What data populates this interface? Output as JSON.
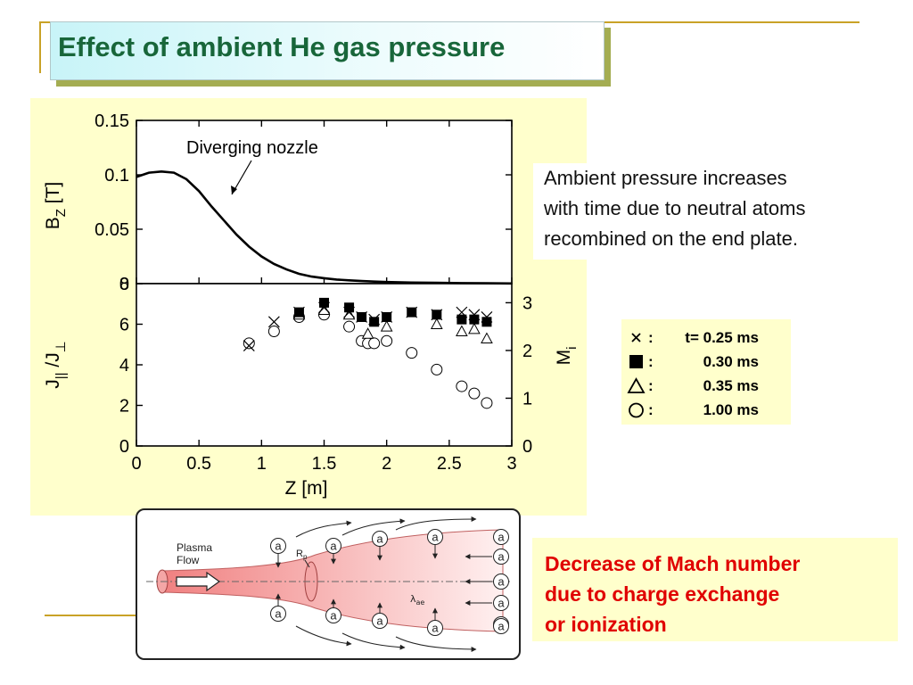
{
  "slide": {
    "title": "Effect of ambient He gas pressure",
    "colors": {
      "title": "#18663a",
      "accent_line": "#c9a227",
      "panel": "#ffffcc",
      "conclusion": "#e00000"
    }
  },
  "annotations": {
    "ambient": "Ambient pressure increases\nwith time due to neutral atoms\nrecombined on the end plate.",
    "conclusion": "Decrease of Mach number\ndue to charge exchange\nor ionization"
  },
  "legend": [
    {
      "symbol": "x-icon",
      "label": "t= 0.25 ms"
    },
    {
      "symbol": "filled-square-icon",
      "label": "0.30 ms"
    },
    {
      "symbol": "open-triangle-icon",
      "label": "0.35 ms"
    },
    {
      "symbol": "open-circle-icon",
      "label": "1.00 ms"
    }
  ],
  "diagram": {
    "plasma_label": "Plasma",
    "flow_label": "Flow",
    "rp_label": "R",
    "rp_sub": "p",
    "lambda_label": "λ",
    "lambda_sub": "ae",
    "atom_symbol": "a"
  },
  "chart_data": [
    {
      "type": "line",
      "annotation": "Diverging nozzle",
      "xlabel": "Z [m]",
      "ylabel": "B",
      "ylabel_sub": "Z",
      "ylabel_unit": " [T]",
      "xlim": [
        0,
        3
      ],
      "ylim": [
        0,
        0.15
      ],
      "yticks": [
        {
          "value": 0,
          "label": "0"
        },
        {
          "value": 0.05,
          "label": "0.05"
        },
        {
          "value": 0.1,
          "label": "0.1"
        },
        {
          "value": 0.15,
          "label": "0.15"
        }
      ],
      "series": [
        {
          "x": [
            0,
            0.1,
            0.2,
            0.3,
            0.4,
            0.5,
            0.6,
            0.7,
            0.8,
            0.9,
            1.0,
            1.1,
            1.2,
            1.3,
            1.4,
            1.5,
            1.6,
            1.7,
            1.8,
            1.9,
            2.0,
            2.2,
            2.4,
            2.6,
            2.8,
            3.0
          ],
          "y": [
            0.098,
            0.102,
            0.103,
            0.102,
            0.096,
            0.085,
            0.071,
            0.058,
            0.045,
            0.034,
            0.025,
            0.018,
            0.013,
            0.009,
            0.0065,
            0.005,
            0.0038,
            0.003,
            0.0024,
            0.0019,
            0.0015,
            0.001,
            0.0007,
            0.0005,
            0.0003,
            0.0002
          ]
        }
      ]
    },
    {
      "type": "scatter",
      "xlabel": "Z [m]",
      "ylabel_left": "J",
      "ylabel_left_sub": "||",
      "ylabel_left_mid": " /J",
      "ylabel_left_sub2": "⊥",
      "ylabel_right": "M",
      "ylabel_right_sub": "i",
      "xlim": [
        0,
        3
      ],
      "ylim": [
        0,
        8
      ],
      "y2lim": [
        0,
        3.4
      ],
      "xticks": [
        {
          "value": 0,
          "label": "0"
        },
        {
          "value": 0.5,
          "label": "0.5"
        },
        {
          "value": 1,
          "label": "1"
        },
        {
          "value": 1.5,
          "label": "1.5"
        },
        {
          "value": 2,
          "label": "2"
        },
        {
          "value": 2.5,
          "label": "2.5"
        },
        {
          "value": 3,
          "label": "3"
        }
      ],
      "yticks": [
        {
          "value": 0,
          "label": "0"
        },
        {
          "value": 2,
          "label": "2"
        },
        {
          "value": 4,
          "label": "4"
        },
        {
          "value": 6,
          "label": "6"
        },
        {
          "value": 8,
          "label": "8"
        }
      ],
      "y2ticks": [
        {
          "value": 0,
          "label": "0"
        },
        {
          "value": 1,
          "label": "1"
        },
        {
          "value": 2,
          "label": "2"
        },
        {
          "value": 3,
          "label": "3"
        }
      ],
      "series": [
        {
          "name": "t= 0.25 ms",
          "marker": "x",
          "x": [
            0.9,
            1.1,
            1.3,
            1.5,
            1.7,
            1.8,
            1.9,
            2.0,
            2.2,
            2.4,
            2.6,
            2.7,
            2.8
          ],
          "y": [
            2.1,
            2.6,
            2.8,
            2.9,
            2.8,
            2.7,
            2.65,
            2.7,
            2.8,
            2.75,
            2.8,
            2.75,
            2.7
          ]
        },
        {
          "name": "0.30 ms",
          "marker": "square",
          "x": [
            1.3,
            1.5,
            1.7,
            1.8,
            1.9,
            2.0,
            2.2,
            2.4,
            2.6,
            2.7,
            2.8
          ],
          "y": [
            2.8,
            3.0,
            2.9,
            2.7,
            2.6,
            2.7,
            2.8,
            2.75,
            2.65,
            2.65,
            2.6
          ]
        },
        {
          "name": "0.35 ms",
          "marker": "triangle",
          "x": [
            1.3,
            1.5,
            1.7,
            1.85,
            2.0,
            2.4,
            2.6,
            2.7,
            2.8
          ],
          "y": [
            2.75,
            2.85,
            2.75,
            2.35,
            2.5,
            2.55,
            2.4,
            2.45,
            2.25
          ]
        },
        {
          "name": "1.00 ms",
          "marker": "circle",
          "x": [
            0.9,
            1.1,
            1.3,
            1.5,
            1.7,
            1.8,
            1.85,
            1.9,
            2.0,
            2.2,
            2.4,
            2.6,
            2.7,
            2.8
          ],
          "y": [
            2.15,
            2.4,
            2.7,
            2.75,
            2.5,
            2.2,
            2.15,
            2.15,
            2.2,
            1.95,
            1.6,
            1.25,
            1.1,
            0.9
          ]
        }
      ]
    }
  ]
}
